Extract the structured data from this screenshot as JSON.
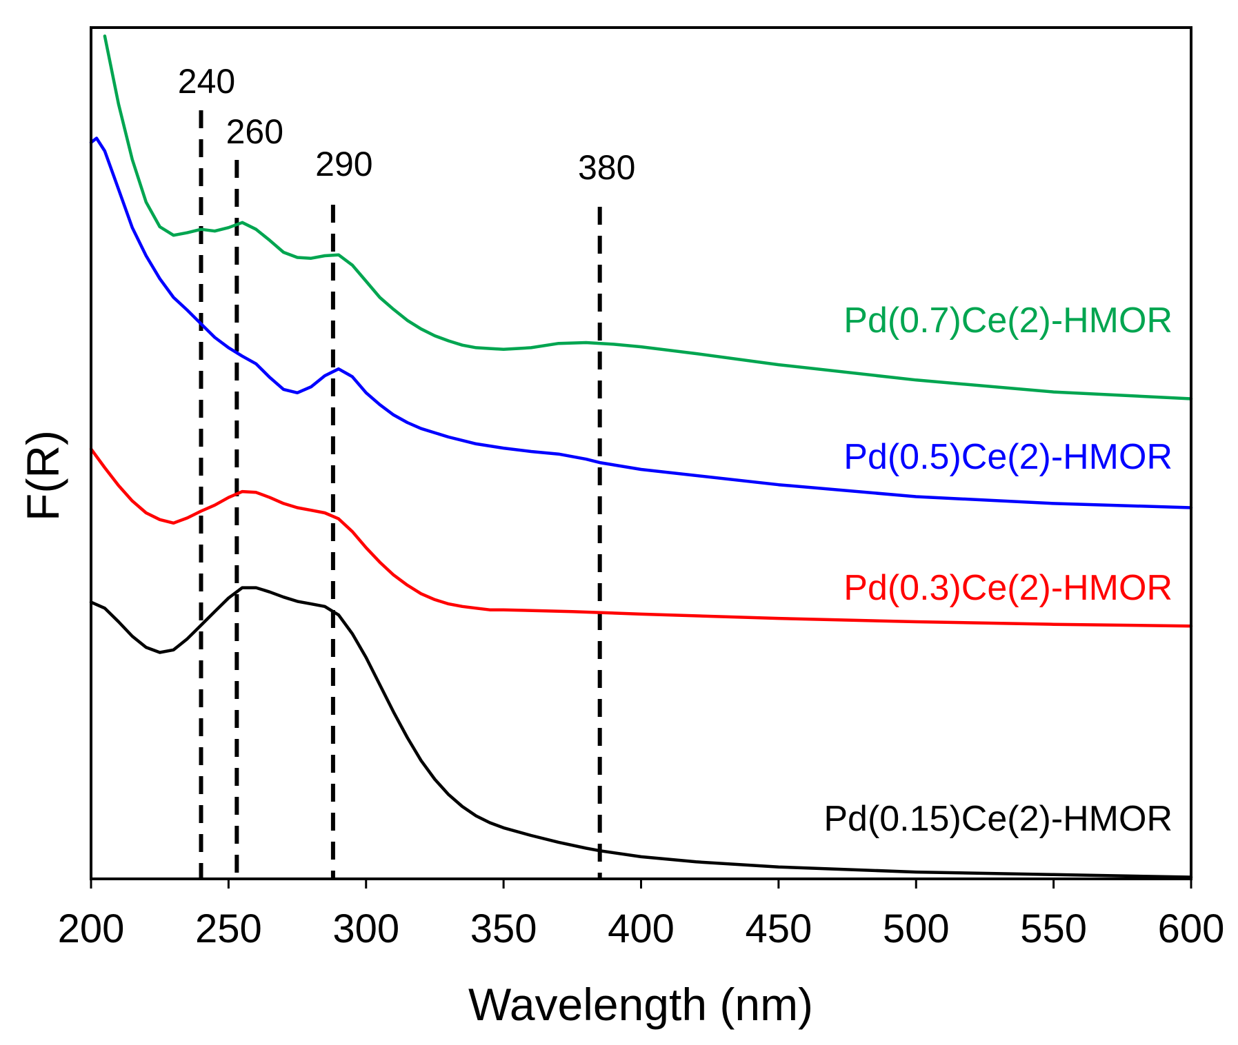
{
  "chart_data": {
    "type": "line",
    "title": "",
    "xlabel": "Wavelength (nm)",
    "ylabel": "F(R)",
    "xlim": [
      200,
      600
    ],
    "ylim": [
      0,
      100
    ],
    "xticks": [
      200,
      250,
      300,
      350,
      400,
      450,
      500,
      550,
      600
    ],
    "yticks_shown": false,
    "grid": false,
    "annotations": [
      {
        "x": 240,
        "label": "240"
      },
      {
        "x": 253,
        "label": "260"
      },
      {
        "x": 288,
        "label": "290"
      },
      {
        "x": 385,
        "label": "380"
      }
    ],
    "series": [
      {
        "name": "Pd(0.15)Ce(2)-HMOR",
        "color": "#000000",
        "points": [
          [
            200,
            32.5
          ],
          [
            205,
            31.8
          ],
          [
            210,
            30.2
          ],
          [
            215,
            28.5
          ],
          [
            220,
            27.2
          ],
          [
            225,
            26.6
          ],
          [
            230,
            26.9
          ],
          [
            235,
            28.2
          ],
          [
            240,
            29.8
          ],
          [
            245,
            31.4
          ],
          [
            250,
            33.0
          ],
          [
            255,
            34.2
          ],
          [
            260,
            34.2
          ],
          [
            265,
            33.7
          ],
          [
            270,
            33.1
          ],
          [
            275,
            32.6
          ],
          [
            280,
            32.3
          ],
          [
            285,
            32.0
          ],
          [
            290,
            31.0
          ],
          [
            295,
            28.8
          ],
          [
            300,
            26.0
          ],
          [
            305,
            22.8
          ],
          [
            310,
            19.6
          ],
          [
            315,
            16.6
          ],
          [
            320,
            13.9
          ],
          [
            325,
            11.7
          ],
          [
            330,
            9.9
          ],
          [
            335,
            8.5
          ],
          [
            340,
            7.4
          ],
          [
            345,
            6.6
          ],
          [
            350,
            6.0
          ],
          [
            360,
            5.1
          ],
          [
            370,
            4.3
          ],
          [
            380,
            3.6
          ],
          [
            385,
            3.3
          ],
          [
            400,
            2.6
          ],
          [
            420,
            2.0
          ],
          [
            450,
            1.4
          ],
          [
            500,
            0.8
          ],
          [
            550,
            0.5
          ],
          [
            600,
            0.2
          ]
        ]
      },
      {
        "name": "Pd(0.3)Ce(2)-HMOR",
        "color": "#ff0000",
        "points": [
          [
            200,
            50.5
          ],
          [
            205,
            48.3
          ],
          [
            210,
            46.2
          ],
          [
            215,
            44.4
          ],
          [
            220,
            43.0
          ],
          [
            225,
            42.2
          ],
          [
            230,
            41.8
          ],
          [
            235,
            42.4
          ],
          [
            240,
            43.2
          ],
          [
            245,
            43.9
          ],
          [
            250,
            44.8
          ],
          [
            255,
            45.5
          ],
          [
            260,
            45.4
          ],
          [
            265,
            44.8
          ],
          [
            270,
            44.1
          ],
          [
            275,
            43.6
          ],
          [
            280,
            43.3
          ],
          [
            285,
            43.0
          ],
          [
            290,
            42.3
          ],
          [
            295,
            40.8
          ],
          [
            300,
            38.9
          ],
          [
            305,
            37.2
          ],
          [
            310,
            35.7
          ],
          [
            315,
            34.5
          ],
          [
            320,
            33.5
          ],
          [
            325,
            32.8
          ],
          [
            330,
            32.3
          ],
          [
            335,
            32.0
          ],
          [
            340,
            31.8
          ],
          [
            345,
            31.6
          ],
          [
            350,
            31.6
          ],
          [
            375,
            31.4
          ],
          [
            400,
            31.1
          ],
          [
            450,
            30.6
          ],
          [
            500,
            30.2
          ],
          [
            550,
            29.9
          ],
          [
            600,
            29.7
          ]
        ]
      },
      {
        "name": "Pd(0.5)Ce(2)-HMOR",
        "color": "#0000ff",
        "points": [
          [
            200,
            86.5
          ],
          [
            202,
            87.0
          ],
          [
            205,
            85.5
          ],
          [
            210,
            81.0
          ],
          [
            215,
            76.5
          ],
          [
            220,
            73.2
          ],
          [
            225,
            70.5
          ],
          [
            230,
            68.3
          ],
          [
            235,
            66.8
          ],
          [
            240,
            65.2
          ],
          [
            245,
            63.6
          ],
          [
            250,
            62.4
          ],
          [
            255,
            61.4
          ],
          [
            260,
            60.5
          ],
          [
            265,
            58.9
          ],
          [
            270,
            57.5
          ],
          [
            275,
            57.1
          ],
          [
            280,
            57.8
          ],
          [
            285,
            59.1
          ],
          [
            290,
            59.9
          ],
          [
            295,
            59.0
          ],
          [
            300,
            57.1
          ],
          [
            305,
            55.7
          ],
          [
            310,
            54.5
          ],
          [
            315,
            53.6
          ],
          [
            320,
            52.9
          ],
          [
            330,
            51.9
          ],
          [
            340,
            51.1
          ],
          [
            350,
            50.6
          ],
          [
            360,
            50.2
          ],
          [
            370,
            49.9
          ],
          [
            380,
            49.3
          ],
          [
            385,
            48.9
          ],
          [
            400,
            48.1
          ],
          [
            450,
            46.3
          ],
          [
            500,
            44.9
          ],
          [
            550,
            44.1
          ],
          [
            600,
            43.6
          ]
        ]
      },
      {
        "name": "Pd(0.7)Ce(2)-HMOR",
        "color": "#00a550",
        "points": [
          [
            205,
            99.0
          ],
          [
            210,
            91.0
          ],
          [
            215,
            84.5
          ],
          [
            220,
            79.5
          ],
          [
            225,
            76.6
          ],
          [
            230,
            75.6
          ],
          [
            235,
            75.9
          ],
          [
            240,
            76.3
          ],
          [
            245,
            76.1
          ],
          [
            250,
            76.5
          ],
          [
            255,
            77.1
          ],
          [
            260,
            76.3
          ],
          [
            265,
            75.0
          ],
          [
            270,
            73.6
          ],
          [
            275,
            73.0
          ],
          [
            280,
            72.9
          ],
          [
            285,
            73.2
          ],
          [
            290,
            73.3
          ],
          [
            295,
            72.1
          ],
          [
            300,
            70.2
          ],
          [
            305,
            68.3
          ],
          [
            310,
            66.9
          ],
          [
            315,
            65.6
          ],
          [
            320,
            64.6
          ],
          [
            325,
            63.8
          ],
          [
            330,
            63.2
          ],
          [
            335,
            62.7
          ],
          [
            340,
            62.4
          ],
          [
            345,
            62.3
          ],
          [
            350,
            62.2
          ],
          [
            360,
            62.4
          ],
          [
            370,
            62.9
          ],
          [
            380,
            63.0
          ],
          [
            390,
            62.8
          ],
          [
            400,
            62.5
          ],
          [
            420,
            61.7
          ],
          [
            450,
            60.4
          ],
          [
            500,
            58.6
          ],
          [
            550,
            57.2
          ],
          [
            600,
            56.4
          ]
        ]
      }
    ]
  }
}
